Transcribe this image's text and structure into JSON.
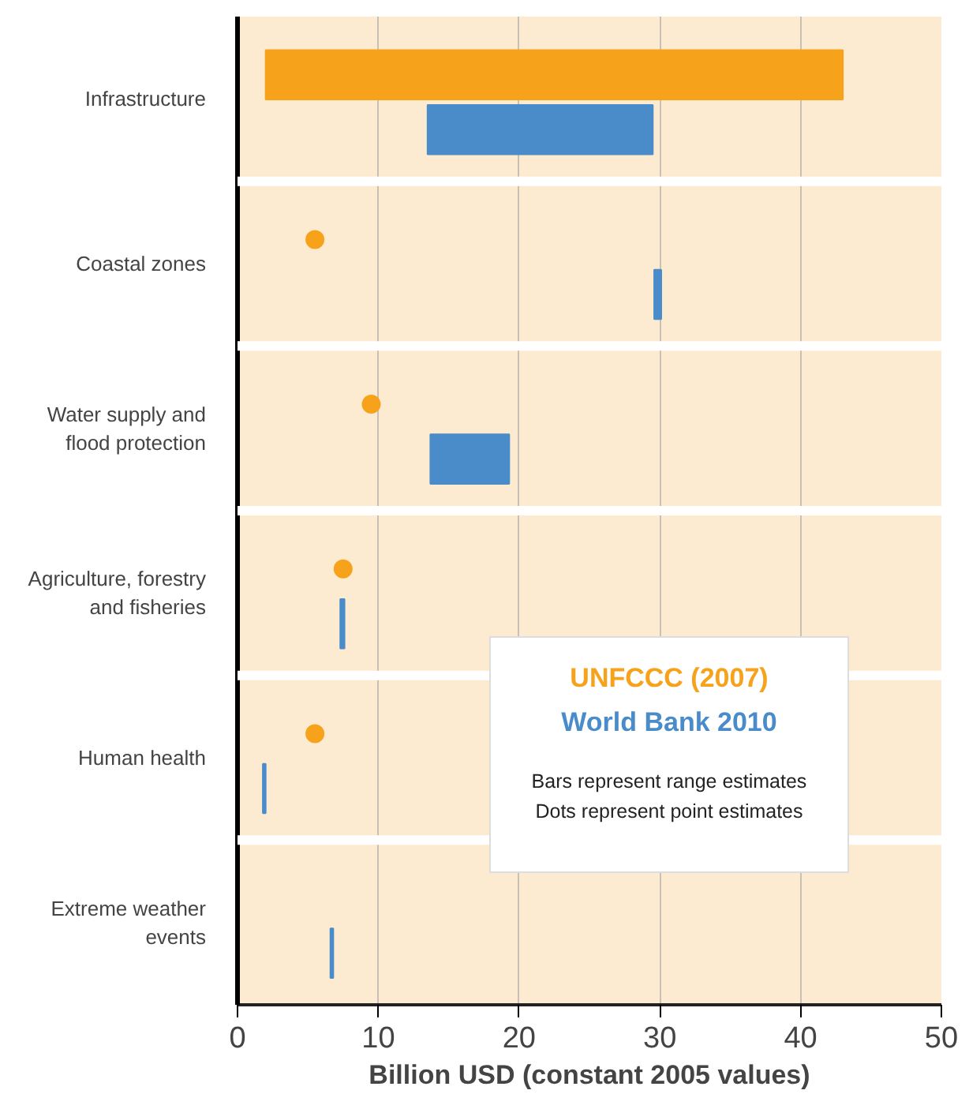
{
  "chart_data": {
    "type": "bar",
    "orientation": "horizontal",
    "xlabel": "Billion USD (constant 2005 values)",
    "categories": [
      "Infrastructure",
      "Coastal zones",
      "Water supply and flood protection",
      "Agriculture, forestry and fisheries",
      "Human health",
      "Extreme weather events"
    ],
    "series": [
      {
        "name": "UNFCCC (2007)",
        "color": "#f7a21b",
        "base": [
          2,
          null,
          null,
          null,
          null,
          null
        ],
        "values": [
          41,
          null,
          null,
          null,
          null,
          null
        ]
      },
      {
        "type": "scatter",
        "color": "#f7a21b",
        "values": [
          null,
          5.5,
          9.5,
          7.5,
          5.5,
          null
        ]
      },
      {
        "name": "World Bank 2010",
        "color": "#4a8cca",
        "base": [
          13.5,
          29.6,
          13.7,
          7.3,
          1.8,
          6.6
        ],
        "values": [
          16,
          0.5,
          5.6,
          0.3,
          0.2,
          0.2
        ]
      }
    ],
    "xlim": [
      0,
      50
    ],
    "xticks": [
      0,
      10,
      20,
      30,
      40,
      50
    ],
    "grid": "x",
    "marker": "circle",
    "annotations": [
      "Bars represent range estimates",
      "Dots represent point estimates"
    ]
  }
}
